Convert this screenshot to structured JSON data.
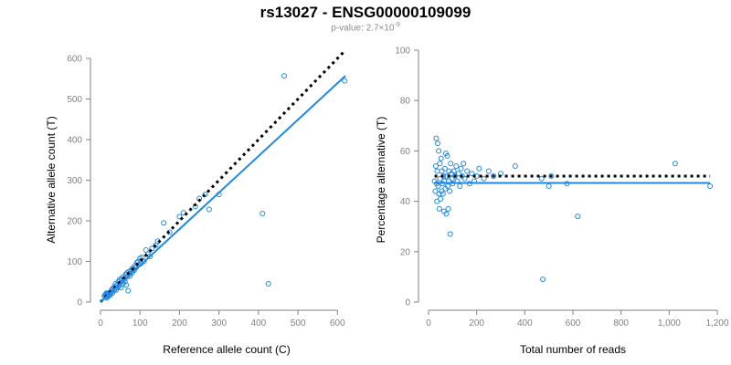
{
  "title": "rs13027 - ENSG00000109099",
  "subtitle": {
    "prefix": "p-value: 2.7×10",
    "exponent": "-9"
  },
  "colors": {
    "points": "#1e88e5",
    "fit": "#1e88e5",
    "reference": "#000000",
    "axes": "#808080"
  },
  "chart_data": [
    {
      "type": "scatter",
      "xlabel": "Reference allele count (C)",
      "ylabel": "Alternative allele count (T)",
      "xlim": [
        0,
        620
      ],
      "ylim": [
        0,
        610
      ],
      "xticks": [
        0,
        100,
        200,
        300,
        400,
        500,
        600
      ],
      "yticks": [
        0,
        100,
        200,
        300,
        400,
        500,
        600
      ],
      "reference_line": {
        "style": "dotted",
        "from": [
          0,
          0
        ],
        "to": [
          620,
          620
        ]
      },
      "fit_line": {
        "style": "solid",
        "from": [
          0,
          0
        ],
        "to": [
          620,
          557
        ]
      },
      "points": [
        [
          10,
          15
        ],
        [
          12,
          18
        ],
        [
          13,
          12
        ],
        [
          14,
          20
        ],
        [
          15,
          22
        ],
        [
          16,
          10
        ],
        [
          17,
          16
        ],
        [
          18,
          21
        ],
        [
          19,
          14
        ],
        [
          20,
          19
        ],
        [
          22,
          23
        ],
        [
          24,
          17
        ],
        [
          25,
          20
        ],
        [
          27,
          25
        ],
        [
          28,
          30
        ],
        [
          30,
          22
        ],
        [
          32,
          34
        ],
        [
          34,
          28
        ],
        [
          35,
          38
        ],
        [
          37,
          33
        ],
        [
          38,
          45
        ],
        [
          40,
          30
        ],
        [
          42,
          42
        ],
        [
          44,
          36
        ],
        [
          45,
          50
        ],
        [
          47,
          40
        ],
        [
          48,
          55
        ],
        [
          50,
          47
        ],
        [
          52,
          35
        ],
        [
          53,
          58
        ],
        [
          55,
          52
        ],
        [
          57,
          45
        ],
        [
          58,
          62
        ],
        [
          60,
          56
        ],
        [
          62,
          50
        ],
        [
          64,
          68
        ],
        [
          65,
          42
        ],
        [
          67,
          72
        ],
        [
          68,
          62
        ],
        [
          70,
          28
        ],
        [
          72,
          75
        ],
        [
          74,
          70
        ],
        [
          75,
          65
        ],
        [
          78,
          80
        ],
        [
          80,
          72
        ],
        [
          82,
          84
        ],
        [
          85,
          78
        ],
        [
          88,
          90
        ],
        [
          90,
          85
        ],
        [
          92,
          97
        ],
        [
          95,
          100
        ],
        [
          97,
          92
        ],
        [
          100,
          108
        ],
        [
          102,
          95
        ],
        [
          105,
          110
        ],
        [
          110,
          100
        ],
        [
          115,
          128
        ],
        [
          120,
          118
        ],
        [
          125,
          112
        ],
        [
          130,
          132
        ],
        [
          140,
          140
        ],
        [
          145,
          150
        ],
        [
          160,
          195
        ],
        [
          175,
          172
        ],
        [
          200,
          210
        ],
        [
          210,
          220
        ],
        [
          240,
          235
        ],
        [
          250,
          255
        ],
        [
          265,
          265
        ],
        [
          275,
          228
        ],
        [
          300,
          265
        ],
        [
          410,
          218
        ],
        [
          425,
          45
        ],
        [
          465,
          557
        ],
        [
          618,
          545
        ]
      ]
    },
    {
      "type": "scatter",
      "xlabel": "Total number of reads",
      "ylabel": "Percentage alternative (T)",
      "xlim": [
        0,
        1200
      ],
      "ylim": [
        0,
        100
      ],
      "xticks": [
        0,
        200,
        400,
        600,
        800,
        1000,
        1200
      ],
      "xtick_labels": [
        "0",
        "200",
        "400",
        "600",
        "800",
        "1,000",
        "1,200"
      ],
      "yticks": [
        0,
        20,
        40,
        60,
        80,
        100
      ],
      "reference_line": {
        "style": "dotted",
        "y": 50
      },
      "fit_line": {
        "style": "solid",
        "y": 47.3
      },
      "points": [
        [
          25,
          48
        ],
        [
          28,
          44
        ],
        [
          30,
          54
        ],
        [
          32,
          65
        ],
        [
          34,
          47
        ],
        [
          35,
          40
        ],
        [
          36,
          52
        ],
        [
          38,
          63
        ],
        [
          40,
          46
        ],
        [
          42,
          60
        ],
        [
          44,
          43
        ],
        [
          45,
          37
        ],
        [
          47,
          55
        ],
        [
          48,
          49
        ],
        [
          50,
          41
        ],
        [
          52,
          57
        ],
        [
          54,
          44
        ],
        [
          55,
          52
        ],
        [
          58,
          47
        ],
        [
          60,
          43
        ],
        [
          62,
          50
        ],
        [
          64,
          36
        ],
        [
          65,
          48
        ],
        [
          68,
          53
        ],
        [
          70,
          45
        ],
        [
          72,
          59
        ],
        [
          74,
          35
        ],
        [
          75,
          50
        ],
        [
          78,
          58
        ],
        [
          80,
          46
        ],
        [
          82,
          37
        ],
        [
          84,
          48
        ],
        [
          85,
          52
        ],
        [
          88,
          44
        ],
        [
          90,
          27
        ],
        [
          92,
          55
        ],
        [
          95,
          51
        ],
        [
          98,
          49
        ],
        [
          100,
          47
        ],
        [
          105,
          52
        ],
        [
          110,
          50
        ],
        [
          115,
          54
        ],
        [
          120,
          48
        ],
        [
          125,
          51
        ],
        [
          130,
          46
        ],
        [
          135,
          53
        ],
        [
          140,
          50
        ],
        [
          145,
          55
        ],
        [
          150,
          49
        ],
        [
          160,
          52
        ],
        [
          170,
          47
        ],
        [
          180,
          51
        ],
        [
          190,
          48
        ],
        [
          200,
          50
        ],
        [
          210,
          53
        ],
        [
          230,
          49
        ],
        [
          250,
          52
        ],
        [
          270,
          50
        ],
        [
          300,
          51
        ],
        [
          360,
          54
        ],
        [
          470,
          49
        ],
        [
          475,
          9
        ],
        [
          500,
          46
        ],
        [
          510,
          50
        ],
        [
          575,
          47
        ],
        [
          620,
          34
        ],
        [
          1025,
          55
        ],
        [
          1170,
          46
        ]
      ]
    }
  ]
}
